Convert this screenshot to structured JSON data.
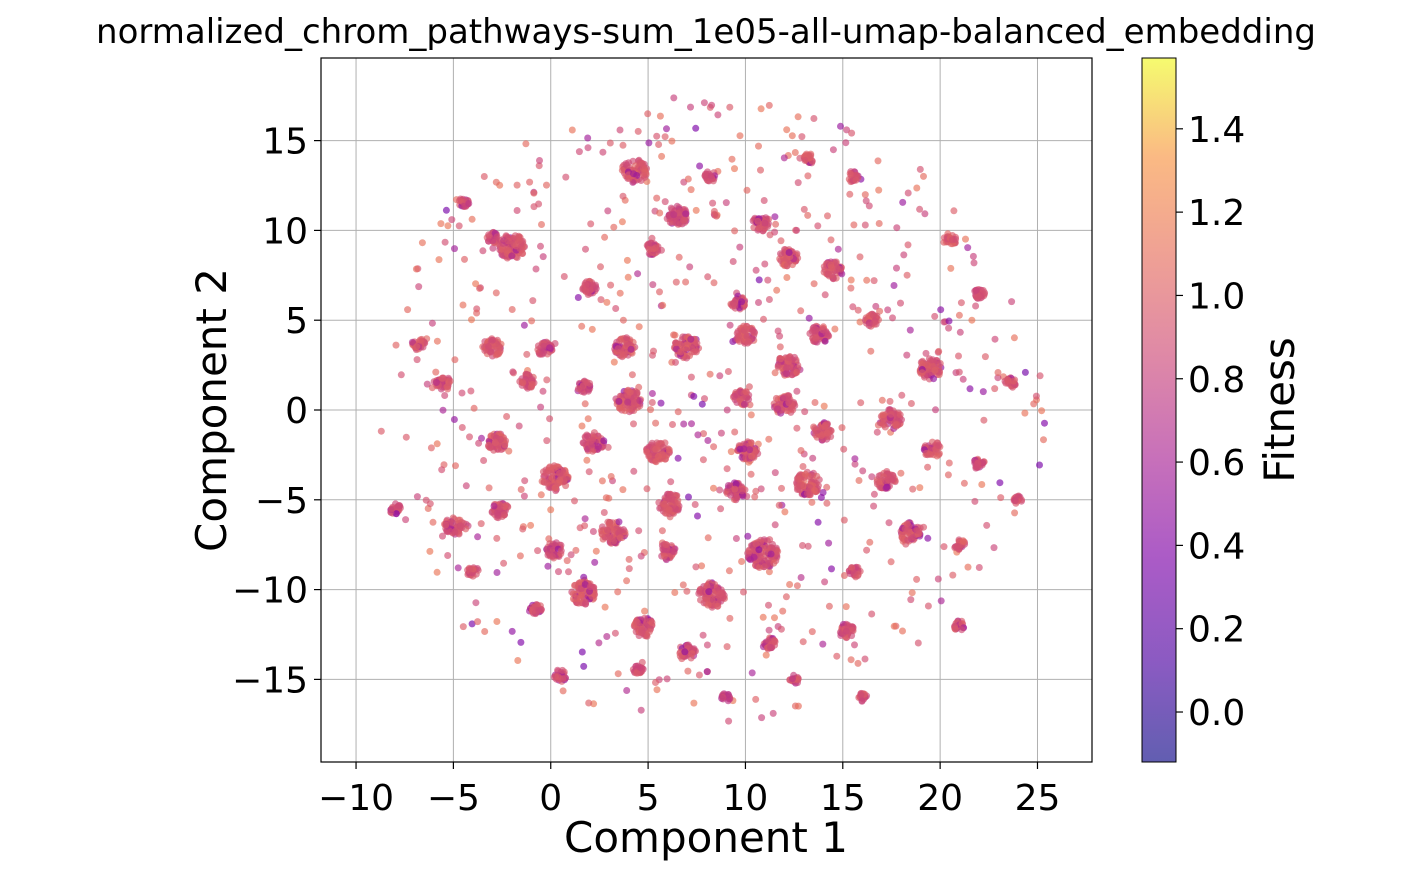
{
  "chart_data": {
    "type": "scatter",
    "title": "normalized_chrom_pathways-sum_1e05-all-umap-balanced_embedding",
    "xlabel": "Component 1",
    "ylabel": "Component 2",
    "xlim": [
      -11.8,
      27.8
    ],
    "ylim": [
      -19.6,
      19.6
    ],
    "x_ticks": [
      -10,
      -5,
      0,
      5,
      10,
      15,
      20,
      25
    ],
    "x_tick_labels": [
      "−10",
      "−5",
      "0",
      "5",
      "10",
      "15",
      "20",
      "25"
    ],
    "y_ticks": [
      -15,
      -10,
      -5,
      0,
      5,
      10,
      15
    ],
    "y_tick_labels": [
      "−15",
      "−10",
      "−5",
      "0",
      "5",
      "10",
      "15"
    ],
    "grid": true,
    "colormap": "plasma",
    "point_opacity": 0.65,
    "colorbar": {
      "label": "Fitness",
      "range": [
        -0.12,
        1.57
      ],
      "ticks": [
        0.0,
        0.2,
        0.4,
        0.6,
        0.8,
        1.0,
        1.2,
        1.4
      ],
      "tick_labels": [
        "0.0",
        "0.2",
        "0.4",
        "0.6",
        "0.8",
        "1.0",
        "1.2",
        "1.4"
      ]
    },
    "clusters_x_y_radius_fitness": [
      [
        4.3,
        13.3,
        0.65,
        0.95
      ],
      [
        6.5,
        10.8,
        0.55,
        0.9
      ],
      [
        10.8,
        10.4,
        0.45,
        0.9
      ],
      [
        -2.0,
        9.1,
        0.7,
        0.92
      ],
      [
        12.2,
        8.5,
        0.5,
        0.95
      ],
      [
        14.5,
        7.8,
        0.5,
        0.92
      ],
      [
        9.6,
        6.0,
        0.4,
        0.95
      ],
      [
        2.0,
        6.8,
        0.4,
        0.9
      ],
      [
        -3.0,
        3.5,
        0.5,
        0.95
      ],
      [
        -0.3,
        3.4,
        0.4,
        0.9
      ],
      [
        3.8,
        3.5,
        0.55,
        0.95
      ],
      [
        7.0,
        3.5,
        0.65,
        0.95
      ],
      [
        10.0,
        4.2,
        0.5,
        0.95
      ],
      [
        12.2,
        2.5,
        0.6,
        0.95
      ],
      [
        13.8,
        4.2,
        0.5,
        0.92
      ],
      [
        4.0,
        0.5,
        0.65,
        0.95
      ],
      [
        9.8,
        0.7,
        0.45,
        0.92
      ],
      [
        12.0,
        0.3,
        0.55,
        0.95
      ],
      [
        19.5,
        2.3,
        0.6,
        0.95
      ],
      [
        17.5,
        -0.5,
        0.55,
        0.95
      ],
      [
        1.7,
        1.3,
        0.35,
        0.9
      ],
      [
        -1.2,
        1.6,
        0.4,
        0.92
      ],
      [
        -5.5,
        1.5,
        0.4,
        0.92
      ],
      [
        0.2,
        -3.8,
        0.7,
        0.95
      ],
      [
        2.2,
        -1.8,
        0.55,
        0.92
      ],
      [
        5.5,
        -2.3,
        0.6,
        0.95
      ],
      [
        10.1,
        -2.3,
        0.55,
        0.95
      ],
      [
        14.0,
        -1.2,
        0.5,
        0.92
      ],
      [
        -2.8,
        -1.8,
        0.5,
        0.95
      ],
      [
        17.2,
        -3.9,
        0.5,
        0.95
      ],
      [
        19.6,
        -2.2,
        0.45,
        0.95
      ],
      [
        6.1,
        -5.2,
        0.6,
        0.92
      ],
      [
        9.5,
        -4.5,
        0.5,
        0.92
      ],
      [
        13.2,
        -4.1,
        0.65,
        0.95
      ],
      [
        -2.6,
        -5.6,
        0.45,
        0.92
      ],
      [
        -5.0,
        -6.5,
        0.5,
        0.95
      ],
      [
        3.2,
        -6.8,
        0.65,
        0.95
      ],
      [
        10.9,
        -8.0,
        0.8,
        0.92
      ],
      [
        18.5,
        -6.8,
        0.55,
        0.95
      ],
      [
        6.0,
        -7.9,
        0.45,
        0.92
      ],
      [
        0.2,
        -7.8,
        0.45,
        0.9
      ],
      [
        1.7,
        -10.2,
        0.65,
        0.95
      ],
      [
        8.3,
        -10.3,
        0.7,
        0.92
      ],
      [
        4.8,
        -12.1,
        0.55,
        0.95
      ],
      [
        7.0,
        -13.5,
        0.45,
        0.92
      ],
      [
        11.2,
        -13.0,
        0.35,
        0.92
      ],
      [
        15.2,
        -12.3,
        0.4,
        0.92
      ],
      [
        -0.8,
        -11.0,
        0.35,
        0.95
      ],
      [
        13.3,
        14.0,
        0.3,
        0.95
      ],
      [
        15.5,
        13.0,
        0.3,
        0.92
      ],
      [
        -3.0,
        9.6,
        0.3,
        0.9
      ],
      [
        8.2,
        13.0,
        0.3,
        0.85
      ],
      [
        20.5,
        9.5,
        0.35,
        0.95
      ],
      [
        22.0,
        6.5,
        0.3,
        0.9
      ],
      [
        16.5,
        5.0,
        0.35,
        0.95
      ],
      [
        5.2,
        9.0,
        0.35,
        0.9
      ],
      [
        -4.5,
        11.5,
        0.3,
        0.9
      ],
      [
        -6.8,
        3.7,
        0.35,
        0.95
      ],
      [
        23.6,
        1.5,
        0.3,
        0.92
      ],
      [
        22.0,
        -3.0,
        0.3,
        0.9
      ],
      [
        24.0,
        -5.0,
        0.25,
        0.92
      ],
      [
        21.0,
        -7.5,
        0.3,
        0.95
      ],
      [
        15.6,
        -9.0,
        0.3,
        0.9
      ],
      [
        -4.0,
        -9.0,
        0.3,
        0.92
      ],
      [
        0.5,
        -14.8,
        0.35,
        0.9
      ],
      [
        4.5,
        -14.5,
        0.3,
        0.9
      ],
      [
        9.0,
        -16.0,
        0.25,
        0.8
      ],
      [
        12.5,
        -15.0,
        0.25,
        0.9
      ],
      [
        16.0,
        -16.0,
        0.25,
        0.9
      ],
      [
        21.0,
        -12.0,
        0.3,
        0.95
      ],
      [
        -8.0,
        -5.5,
        0.3,
        0.9
      ]
    ]
  }
}
